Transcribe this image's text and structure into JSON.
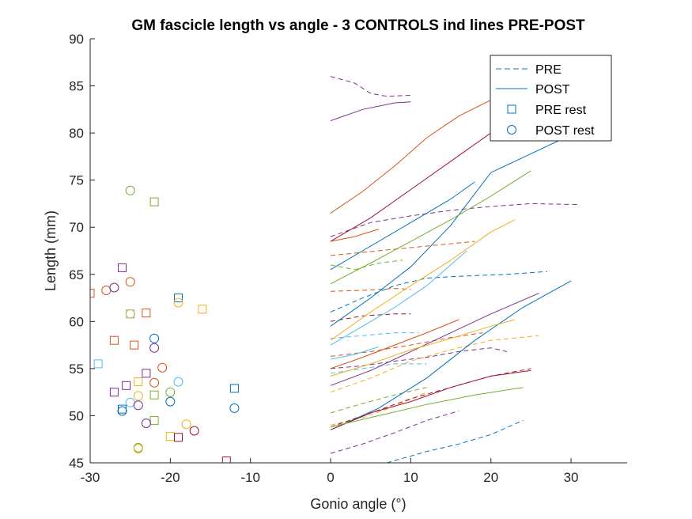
{
  "chart_data": {
    "type": "line",
    "title": "GM fascicle length vs angle - 3 CONTROLS ind lines PRE-POST",
    "xlabel": "Gonio angle (°)",
    "ylabel": "Length (mm)",
    "xlim": [
      -30,
      37
    ],
    "ylim": [
      45,
      90
    ],
    "xticks": [
      -30,
      -20,
      -10,
      0,
      10,
      20,
      30
    ],
    "yticks": [
      45,
      50,
      55,
      60,
      65,
      70,
      75,
      80,
      85,
      90
    ],
    "xtick_labels": [
      "-30",
      "-20",
      "-10",
      "0",
      "10",
      "20",
      "30"
    ],
    "ytick_labels": [
      "45",
      "50",
      "55",
      "60",
      "65",
      "70",
      "75",
      "80",
      "85",
      "90"
    ],
    "grid": false,
    "legend_position": "top-right",
    "legend": [
      {
        "label": "PRE",
        "style": "dashed-line"
      },
      {
        "label": "POST",
        "style": "solid-line"
      },
      {
        "label": "PRE rest",
        "style": "square-marker"
      },
      {
        "label": "POST rest",
        "style": "circle-marker"
      }
    ],
    "colors": [
      "#0072BD",
      "#D95319",
      "#EDB120",
      "#7E2F8E",
      "#77AC30",
      "#4DBEEE",
      "#A2142F"
    ],
    "legend_color": "#0072BD",
    "pre_lines": [
      {
        "c": 0,
        "pts": [
          [
            0,
            61.0
          ],
          [
            4,
            62.5
          ],
          [
            8,
            63.8
          ],
          [
            12,
            64.6
          ],
          [
            16,
            64.8
          ],
          [
            22,
            65.0
          ],
          [
            27,
            65.3
          ]
        ]
      },
      {
        "c": 3,
        "pts": [
          [
            0,
            86.0
          ],
          [
            3,
            85.3
          ],
          [
            5,
            84.2
          ],
          [
            7,
            83.9
          ],
          [
            10,
            84.0
          ]
        ]
      },
      {
        "c": 3,
        "pts": [
          [
            0,
            69.0
          ],
          [
            5,
            70.5
          ],
          [
            10,
            71.2
          ],
          [
            15,
            71.8
          ],
          [
            20,
            72.2
          ],
          [
            25,
            72.5
          ],
          [
            31,
            72.4
          ]
        ]
      },
      {
        "c": 3,
        "pts": [
          [
            0,
            55.0
          ],
          [
            4,
            55.3
          ],
          [
            8,
            55.8
          ],
          [
            12,
            56.2
          ],
          [
            16,
            56.8
          ],
          [
            20,
            57.2
          ],
          [
            22,
            56.8
          ]
        ]
      },
      {
        "c": 3,
        "pts": [
          [
            0,
            46.0
          ],
          [
            4,
            47.0
          ],
          [
            8,
            48.2
          ],
          [
            12,
            49.5
          ],
          [
            16,
            50.5
          ]
        ]
      },
      {
        "c": 1,
        "pts": [
          [
            0,
            67.0
          ],
          [
            6,
            67.5
          ],
          [
            12,
            68.0
          ],
          [
            18,
            68.5
          ]
        ]
      },
      {
        "c": 1,
        "pts": [
          [
            0,
            63.2
          ],
          [
            4,
            63.3
          ],
          [
            8,
            63.5
          ],
          [
            10,
            63.4
          ]
        ]
      },
      {
        "c": 1,
        "pts": [
          [
            0,
            56.3
          ],
          [
            5,
            56.8
          ],
          [
            10,
            57.5
          ],
          [
            15,
            58.3
          ],
          [
            19,
            58.8
          ]
        ]
      },
      {
        "c": 2,
        "pts": [
          [
            0,
            52.5
          ],
          [
            5,
            54.0
          ],
          [
            10,
            55.8
          ],
          [
            15,
            57.0
          ],
          [
            20,
            58.0
          ],
          [
            26,
            58.5
          ]
        ]
      },
      {
        "c": 2,
        "pts": [
          [
            0,
            49.0
          ],
          [
            4,
            49.8
          ],
          [
            8,
            51.0
          ],
          [
            12,
            52.5
          ]
        ]
      },
      {
        "c": 4,
        "pts": [
          [
            0,
            66.0
          ],
          [
            3,
            65.5
          ],
          [
            6,
            66.2
          ],
          [
            9,
            66.5
          ]
        ]
      },
      {
        "c": 4,
        "pts": [
          [
            0,
            50.3
          ],
          [
            4,
            51.3
          ],
          [
            8,
            52.2
          ],
          [
            12,
            53.0
          ]
        ]
      },
      {
        "c": 5,
        "pts": [
          [
            0,
            58.2
          ],
          [
            4,
            58.5
          ],
          [
            8,
            58.8
          ],
          [
            11,
            58.8
          ]
        ]
      },
      {
        "c": 5,
        "pts": [
          [
            0,
            54.5
          ],
          [
            4,
            55.0
          ],
          [
            8,
            55.5
          ],
          [
            12,
            55.5
          ]
        ]
      },
      {
        "c": 6,
        "pts": [
          [
            0,
            60.0
          ],
          [
            4,
            60.6
          ],
          [
            8,
            60.8
          ],
          [
            10,
            60.8
          ]
        ]
      },
      {
        "c": 6,
        "pts": [
          [
            0,
            48.8
          ],
          [
            5,
            50.3
          ],
          [
            10,
            51.8
          ],
          [
            15,
            53.0
          ],
          [
            20,
            54.2
          ],
          [
            25,
            55.0
          ]
        ]
      },
      {
        "c": 0,
        "pts": [
          [
            7,
            45.0
          ],
          [
            12,
            46.2
          ],
          [
            16,
            47.0
          ],
          [
            20,
            48.0
          ],
          [
            24,
            49.5
          ]
        ]
      }
    ],
    "post_lines": [
      {
        "c": 1,
        "pts": [
          [
            0,
            71.5
          ],
          [
            4,
            73.8
          ],
          [
            8,
            76.5
          ],
          [
            12,
            79.5
          ],
          [
            16,
            81.8
          ],
          [
            20,
            83.5
          ],
          [
            24,
            84.8
          ]
        ]
      },
      {
        "c": 3,
        "pts": [
          [
            0,
            81.3
          ],
          [
            4,
            82.5
          ],
          [
            8,
            83.2
          ],
          [
            10,
            83.3
          ]
        ]
      },
      {
        "c": 0,
        "pts": [
          [
            0,
            59.5
          ],
          [
            5,
            62.5
          ],
          [
            10,
            65.8
          ],
          [
            15,
            70.2
          ],
          [
            20,
            75.8
          ],
          [
            25,
            77.8
          ],
          [
            30,
            79.8
          ],
          [
            35,
            80.8
          ]
        ]
      },
      {
        "c": 6,
        "pts": [
          [
            0,
            68.5
          ],
          [
            5,
            71.0
          ],
          [
            10,
            74.0
          ],
          [
            15,
            77.0
          ],
          [
            20,
            80.0
          ],
          [
            26,
            82.0
          ]
        ]
      },
      {
        "c": 4,
        "pts": [
          [
            0,
            64.0
          ],
          [
            5,
            66.2
          ],
          [
            10,
            68.5
          ],
          [
            15,
            70.8
          ],
          [
            20,
            73.3
          ],
          [
            25,
            76.0
          ]
        ]
      },
      {
        "c": 2,
        "pts": [
          [
            0,
            58.0
          ],
          [
            5,
            61.0
          ],
          [
            10,
            63.8
          ],
          [
            15,
            66.5
          ],
          [
            20,
            69.5
          ],
          [
            23,
            70.8
          ]
        ]
      },
      {
        "c": 5,
        "pts": [
          [
            0,
            57.5
          ],
          [
            4,
            59.5
          ],
          [
            8,
            61.5
          ],
          [
            12,
            63.8
          ],
          [
            17,
            67.5
          ]
        ]
      },
      {
        "c": 0,
        "pts": [
          [
            0,
            48.5
          ],
          [
            6,
            50.8
          ],
          [
            12,
            54.0
          ],
          [
            18,
            58.0
          ],
          [
            24,
            61.5
          ],
          [
            30,
            64.3
          ]
        ]
      },
      {
        "c": 3,
        "pts": [
          [
            0,
            53.2
          ],
          [
            5,
            54.8
          ],
          [
            10,
            56.8
          ],
          [
            15,
            58.8
          ],
          [
            20,
            60.8
          ],
          [
            26,
            63.0
          ]
        ]
      },
      {
        "c": 1,
        "pts": [
          [
            0,
            55.0
          ],
          [
            4,
            56.2
          ],
          [
            8,
            57.5
          ],
          [
            12,
            58.8
          ],
          [
            16,
            60.2
          ]
        ]
      },
      {
        "c": 2,
        "pts": [
          [
            0,
            54.2
          ],
          [
            5,
            55.5
          ],
          [
            10,
            57.0
          ],
          [
            15,
            58.2
          ],
          [
            20,
            59.5
          ],
          [
            23,
            60.2
          ]
        ]
      },
      {
        "c": 6,
        "pts": [
          [
            0,
            48.5
          ],
          [
            5,
            50.3
          ],
          [
            10,
            51.5
          ],
          [
            15,
            53.0
          ],
          [
            20,
            54.2
          ],
          [
            25,
            54.8
          ]
        ]
      },
      {
        "c": 4,
        "pts": [
          [
            0,
            48.8
          ],
          [
            6,
            50.0
          ],
          [
            12,
            51.2
          ],
          [
            18,
            52.2
          ],
          [
            24,
            53.0
          ]
        ]
      },
      {
        "c": 5,
        "pts": [
          [
            0,
            56.0
          ],
          [
            3,
            56.5
          ],
          [
            6,
            57.3
          ]
        ]
      },
      {
        "c": 0,
        "pts": [
          [
            0,
            65.5
          ],
          [
            5,
            68.0
          ],
          [
            10,
            70.5
          ],
          [
            15,
            73.0
          ],
          [
            18,
            74.8
          ]
        ]
      },
      {
        "c": 1,
        "pts": [
          [
            0,
            68.5
          ],
          [
            3,
            69.0
          ],
          [
            6,
            69.8
          ]
        ]
      }
    ],
    "pre_rest": [
      {
        "x": -30,
        "y": 63.0,
        "c": 1
      },
      {
        "x": -29,
        "y": 55.5,
        "c": 5
      },
      {
        "x": -27,
        "y": 58.0,
        "c": 1
      },
      {
        "x": -27,
        "y": 52.5,
        "c": 3
      },
      {
        "x": -26,
        "y": 65.7,
        "c": 3
      },
      {
        "x": -26,
        "y": 50.7,
        "c": 0
      },
      {
        "x": -25.5,
        "y": 53.2,
        "c": 3
      },
      {
        "x": -25,
        "y": 60.8,
        "c": 5
      },
      {
        "x": -24.5,
        "y": 57.5,
        "c": 1
      },
      {
        "x": -24,
        "y": 53.6,
        "c": 2
      },
      {
        "x": -23,
        "y": 60.9,
        "c": 1
      },
      {
        "x": -23,
        "y": 54.5,
        "c": 3
      },
      {
        "x": -22,
        "y": 72.7,
        "c": 4
      },
      {
        "x": -22,
        "y": 52.2,
        "c": 4
      },
      {
        "x": -22,
        "y": 49.5,
        "c": 4
      },
      {
        "x": -20,
        "y": 47.8,
        "c": 2
      },
      {
        "x": -19,
        "y": 62.5,
        "c": 0
      },
      {
        "x": -19,
        "y": 47.7,
        "c": 6
      },
      {
        "x": -16,
        "y": 61.3,
        "c": 2
      },
      {
        "x": -13,
        "y": 45.2,
        "c": 6
      },
      {
        "x": -12,
        "y": 52.9,
        "c": 0
      }
    ],
    "post_rest": [
      {
        "x": -28,
        "y": 63.3,
        "c": 1
      },
      {
        "x": -27,
        "y": 63.6,
        "c": 3
      },
      {
        "x": -26,
        "y": 50.5,
        "c": 0
      },
      {
        "x": -25,
        "y": 73.9,
        "c": 4
      },
      {
        "x": -25,
        "y": 64.2,
        "c": 1
      },
      {
        "x": -25,
        "y": 60.8,
        "c": 2
      },
      {
        "x": -25,
        "y": 51.4,
        "c": 5
      },
      {
        "x": -24,
        "y": 52.1,
        "c": 2
      },
      {
        "x": -24,
        "y": 51.1,
        "c": 3
      },
      {
        "x": -24,
        "y": 46.6,
        "c": 4
      },
      {
        "x": -24,
        "y": 46.5,
        "c": 2
      },
      {
        "x": -23,
        "y": 49.2,
        "c": 3
      },
      {
        "x": -22,
        "y": 58.2,
        "c": 0
      },
      {
        "x": -22,
        "y": 57.2,
        "c": 3
      },
      {
        "x": -22,
        "y": 53.5,
        "c": 1
      },
      {
        "x": -21,
        "y": 55.1,
        "c": 1
      },
      {
        "x": -20,
        "y": 52.5,
        "c": 4
      },
      {
        "x": -20,
        "y": 51.5,
        "c": 0
      },
      {
        "x": -19,
        "y": 62.0,
        "c": 2
      },
      {
        "x": -19,
        "y": 53.6,
        "c": 5
      },
      {
        "x": -18,
        "y": 49.1,
        "c": 2
      },
      {
        "x": -17,
        "y": 48.4,
        "c": 6
      },
      {
        "x": -12,
        "y": 50.8,
        "c": 0
      }
    ]
  }
}
